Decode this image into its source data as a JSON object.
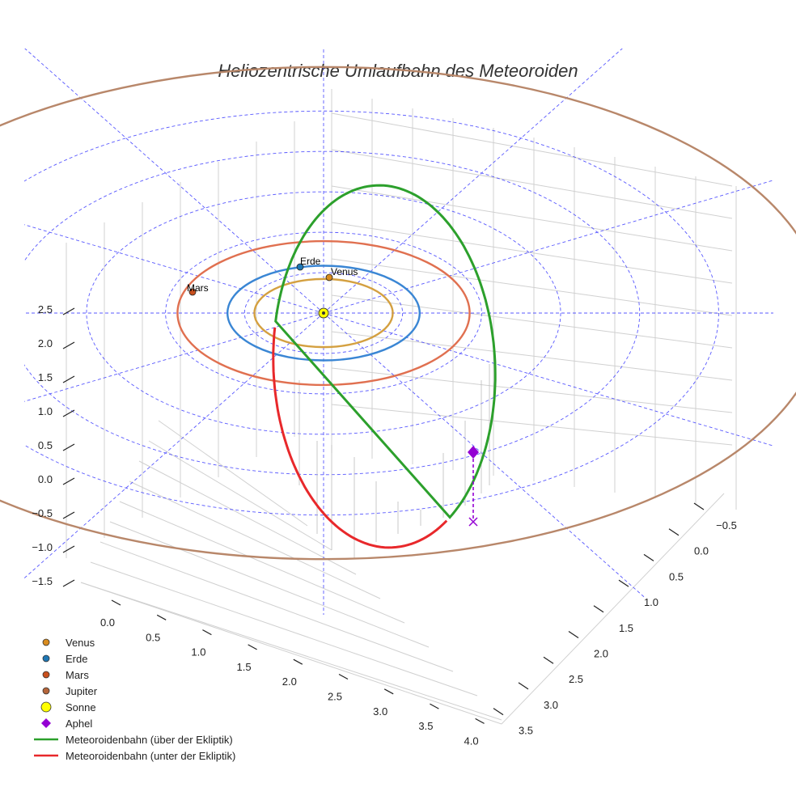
{
  "chart_data": {
    "type": "line3d",
    "title": "Heliozentrische Umlaufbahn des Meteoroiden",
    "axes": {
      "x_ticks": [
        "0.0",
        "0.5",
        "1.0",
        "1.5",
        "2.0",
        "2.5",
        "3.0",
        "3.5",
        "4.0"
      ],
      "y_ticks": [
        "−0.5",
        "0.0",
        "0.5",
        "1.0",
        "1.5",
        "2.0",
        "2.5",
        "3.0",
        "3.5"
      ],
      "z_ticks": [
        "−1.5",
        "−1.0",
        "−0.5",
        "0.0",
        "0.5",
        "1.0",
        "1.5",
        "2.0",
        "2.5"
      ],
      "grid": true
    },
    "legend_position": "bottom-left",
    "legend": [
      {
        "label": "Venus",
        "marker": "circle",
        "color": "#d98c1f"
      },
      {
        "label": "Erde",
        "marker": "circle",
        "color": "#1f77b4"
      },
      {
        "label": "Mars",
        "marker": "circle",
        "color": "#c8501e"
      },
      {
        "label": "Jupiter",
        "marker": "circle",
        "color": "#b5653a"
      },
      {
        "label": "Sonne",
        "marker": "circle",
        "color": "#ffff00"
      },
      {
        "label": "Aphel",
        "marker": "diamond",
        "color": "#9400d3"
      },
      {
        "label": "Meteoroidenbahn (über der Ekliptik)",
        "marker": "line",
        "color": "#2ca02c"
      },
      {
        "label": "Meteoroidenbahn (unter der Ekliptik)",
        "marker": "line",
        "color": "#e8282b"
      }
    ],
    "planet_labels": [
      "Venus",
      "Erde",
      "Mars"
    ],
    "orbits_au": {
      "Venus": 0.72,
      "Erde": 1.0,
      "Mars": 1.52,
      "Jupiter": 5.2
    },
    "orbit_colors": {
      "Venus": "#d4a040",
      "Erde": "#3a86d4",
      "Mars": "#e07050",
      "Jupiter": "#b8876a"
    },
    "ecliptic_grid_color": "#3b3bff"
  }
}
